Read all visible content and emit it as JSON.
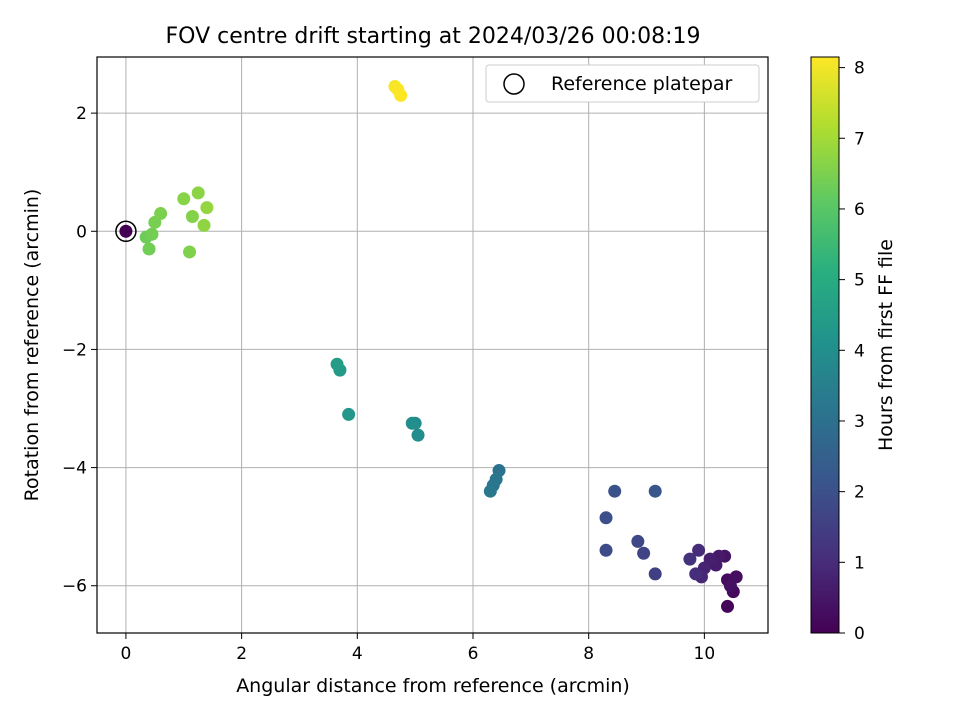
{
  "chart_data": {
    "type": "scatter",
    "title": "FOV centre drift starting at 2024/03/26 00:08:19",
    "xlabel": "Angular distance from reference (arcmin)",
    "ylabel": "Rotation from reference (arcmin)",
    "xlim": [
      -0.5,
      11.1
    ],
    "ylim": [
      -6.8,
      2.95
    ],
    "xticks": [
      0,
      2,
      4,
      6,
      8,
      10
    ],
    "yticks": [
      -6,
      -4,
      -2,
      0,
      2
    ],
    "xtick_labels": [
      "0",
      "2",
      "4",
      "6",
      "8",
      "10"
    ],
    "ytick_labels": [
      "−6",
      "−4",
      "−2",
      "0",
      "2"
    ],
    "grid": true,
    "legend": {
      "position": "top-right",
      "label": "Reference platepar"
    },
    "reference_point": {
      "x": 0,
      "y": 0
    },
    "colorbar": {
      "label": "Hours from first FF file",
      "min": 0,
      "max": 8.15,
      "ticks": [
        0,
        1,
        2,
        3,
        4,
        5,
        6,
        7,
        8
      ],
      "tick_labels": [
        "0",
        "1",
        "2",
        "3",
        "4",
        "5",
        "6",
        "7",
        "8"
      ],
      "colormap": "viridis"
    },
    "points": [
      {
        "x": 10.4,
        "y": -6.35,
        "h": 0.1
      },
      {
        "x": 10.5,
        "y": -6.1,
        "h": 0.2
      },
      {
        "x": 10.4,
        "y": -5.9,
        "h": 0.25
      },
      {
        "x": 10.55,
        "y": -5.85,
        "h": 0.3
      },
      {
        "x": 10.45,
        "y": -6.0,
        "h": 0.35
      },
      {
        "x": 10.35,
        "y": -5.5,
        "h": 0.45
      },
      {
        "x": 10.25,
        "y": -5.5,
        "h": 0.55
      },
      {
        "x": 10.2,
        "y": -5.65,
        "h": 0.6
      },
      {
        "x": 10.1,
        "y": -5.55,
        "h": 0.7
      },
      {
        "x": 10.0,
        "y": -5.7,
        "h": 0.8
      },
      {
        "x": 9.95,
        "y": -5.85,
        "h": 0.9
      },
      {
        "x": 9.9,
        "y": -5.4,
        "h": 1.0
      },
      {
        "x": 9.85,
        "y": -5.8,
        "h": 1.05
      },
      {
        "x": 9.75,
        "y": -5.55,
        "h": 1.15
      },
      {
        "x": 9.15,
        "y": -5.8,
        "h": 1.5
      },
      {
        "x": 8.95,
        "y": -5.45,
        "h": 1.65
      },
      {
        "x": 8.85,
        "y": -5.25,
        "h": 1.75
      },
      {
        "x": 8.3,
        "y": -5.4,
        "h": 1.85
      },
      {
        "x": 8.3,
        "y": -4.85,
        "h": 1.95
      },
      {
        "x": 8.45,
        "y": -4.4,
        "h": 2.05
      },
      {
        "x": 9.15,
        "y": -4.4,
        "h": 2.15
      },
      {
        "x": 6.45,
        "y": -4.05,
        "h": 3.05
      },
      {
        "x": 6.4,
        "y": -4.2,
        "h": 3.15
      },
      {
        "x": 6.35,
        "y": -4.3,
        "h": 3.2
      },
      {
        "x": 6.3,
        "y": -4.4,
        "h": 3.25
      },
      {
        "x": 5.05,
        "y": -3.45,
        "h": 3.9
      },
      {
        "x": 5.0,
        "y": -3.25,
        "h": 3.95
      },
      {
        "x": 4.95,
        "y": -3.25,
        "h": 4.0
      },
      {
        "x": 3.85,
        "y": -3.1,
        "h": 4.3
      },
      {
        "x": 3.7,
        "y": -2.35,
        "h": 4.4
      },
      {
        "x": 3.65,
        "y": -2.25,
        "h": 4.45
      },
      {
        "x": 0.0,
        "y": 0.0,
        "h": 0.0
      },
      {
        "x": 0.35,
        "y": -0.1,
        "h": 6.3
      },
      {
        "x": 0.4,
        "y": -0.3,
        "h": 6.35
      },
      {
        "x": 0.45,
        "y": -0.05,
        "h": 6.4
      },
      {
        "x": 0.5,
        "y": 0.15,
        "h": 6.45
      },
      {
        "x": 0.6,
        "y": 0.3,
        "h": 6.5
      },
      {
        "x": 1.1,
        "y": -0.35,
        "h": 6.55
      },
      {
        "x": 1.15,
        "y": 0.25,
        "h": 6.6
      },
      {
        "x": 1.0,
        "y": 0.55,
        "h": 6.65
      },
      {
        "x": 1.25,
        "y": 0.65,
        "h": 6.7
      },
      {
        "x": 1.35,
        "y": 0.1,
        "h": 6.75
      },
      {
        "x": 1.4,
        "y": 0.4,
        "h": 6.8
      },
      {
        "x": 4.65,
        "y": 2.45,
        "h": 8.05
      },
      {
        "x": 4.7,
        "y": 2.4,
        "h": 8.1
      },
      {
        "x": 4.75,
        "y": 2.3,
        "h": 8.15
      }
    ]
  }
}
